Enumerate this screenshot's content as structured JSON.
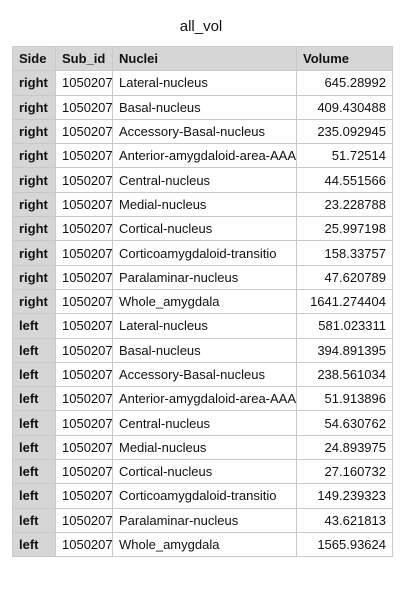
{
  "sheet": {
    "title": "all_vol",
    "columns": [
      "Side",
      "Sub_id",
      "Nuclei",
      "Volume"
    ],
    "rows": [
      {
        "side": "right",
        "sub_id": "1050207",
        "nuclei": "Lateral-nucleus",
        "volume": "645.28992"
      },
      {
        "side": "right",
        "sub_id": "1050207",
        "nuclei": "Basal-nucleus",
        "volume": "409.430488"
      },
      {
        "side": "right",
        "sub_id": "1050207",
        "nuclei": "Accessory-Basal-nucleus",
        "volume": "235.092945"
      },
      {
        "side": "right",
        "sub_id": "1050207",
        "nuclei": "Anterior-amygdaloid-area-AAA",
        "volume": "51.72514"
      },
      {
        "side": "right",
        "sub_id": "1050207",
        "nuclei": "Central-nucleus",
        "volume": "44.551566"
      },
      {
        "side": "right",
        "sub_id": "1050207",
        "nuclei": "Medial-nucleus",
        "volume": "23.228788"
      },
      {
        "side": "right",
        "sub_id": "1050207",
        "nuclei": "Cortical-nucleus",
        "volume": "25.997198"
      },
      {
        "side": "right",
        "sub_id": "1050207",
        "nuclei": "Corticoamygdaloid-transitio",
        "volume": "158.33757"
      },
      {
        "side": "right",
        "sub_id": "1050207",
        "nuclei": "Paralaminar-nucleus",
        "volume": "47.620789"
      },
      {
        "side": "right",
        "sub_id": "1050207",
        "nuclei": "Whole_amygdala",
        "volume": "1641.274404"
      },
      {
        "side": "left",
        "sub_id": "1050207",
        "nuclei": "Lateral-nucleus",
        "volume": "581.023311"
      },
      {
        "side": "left",
        "sub_id": "1050207",
        "nuclei": "Basal-nucleus",
        "volume": "394.891395"
      },
      {
        "side": "left",
        "sub_id": "1050207",
        "nuclei": "Accessory-Basal-nucleus",
        "volume": "238.561034"
      },
      {
        "side": "left",
        "sub_id": "1050207",
        "nuclei": "Anterior-amygdaloid-area-AAA",
        "volume": "51.913896"
      },
      {
        "side": "left",
        "sub_id": "1050207",
        "nuclei": "Central-nucleus",
        "volume": "54.630762"
      },
      {
        "side": "left",
        "sub_id": "1050207",
        "nuclei": "Medial-nucleus",
        "volume": "24.893975"
      },
      {
        "side": "left",
        "sub_id": "1050207",
        "nuclei": "Cortical-nucleus",
        "volume": "27.160732"
      },
      {
        "side": "left",
        "sub_id": "1050207",
        "nuclei": "Corticoamygdaloid-transitio",
        "volume": "149.239323"
      },
      {
        "side": "left",
        "sub_id": "1050207",
        "nuclei": "Paralaminar-nucleus",
        "volume": "43.621813"
      },
      {
        "side": "left",
        "sub_id": "1050207",
        "nuclei": "Whole_amygdala",
        "volume": "1565.93624"
      }
    ]
  },
  "colors": {
    "header_bg": "#d6d6d6",
    "grid_line": "#c9c9c9",
    "text": "#111111",
    "background": "#ffffff"
  }
}
